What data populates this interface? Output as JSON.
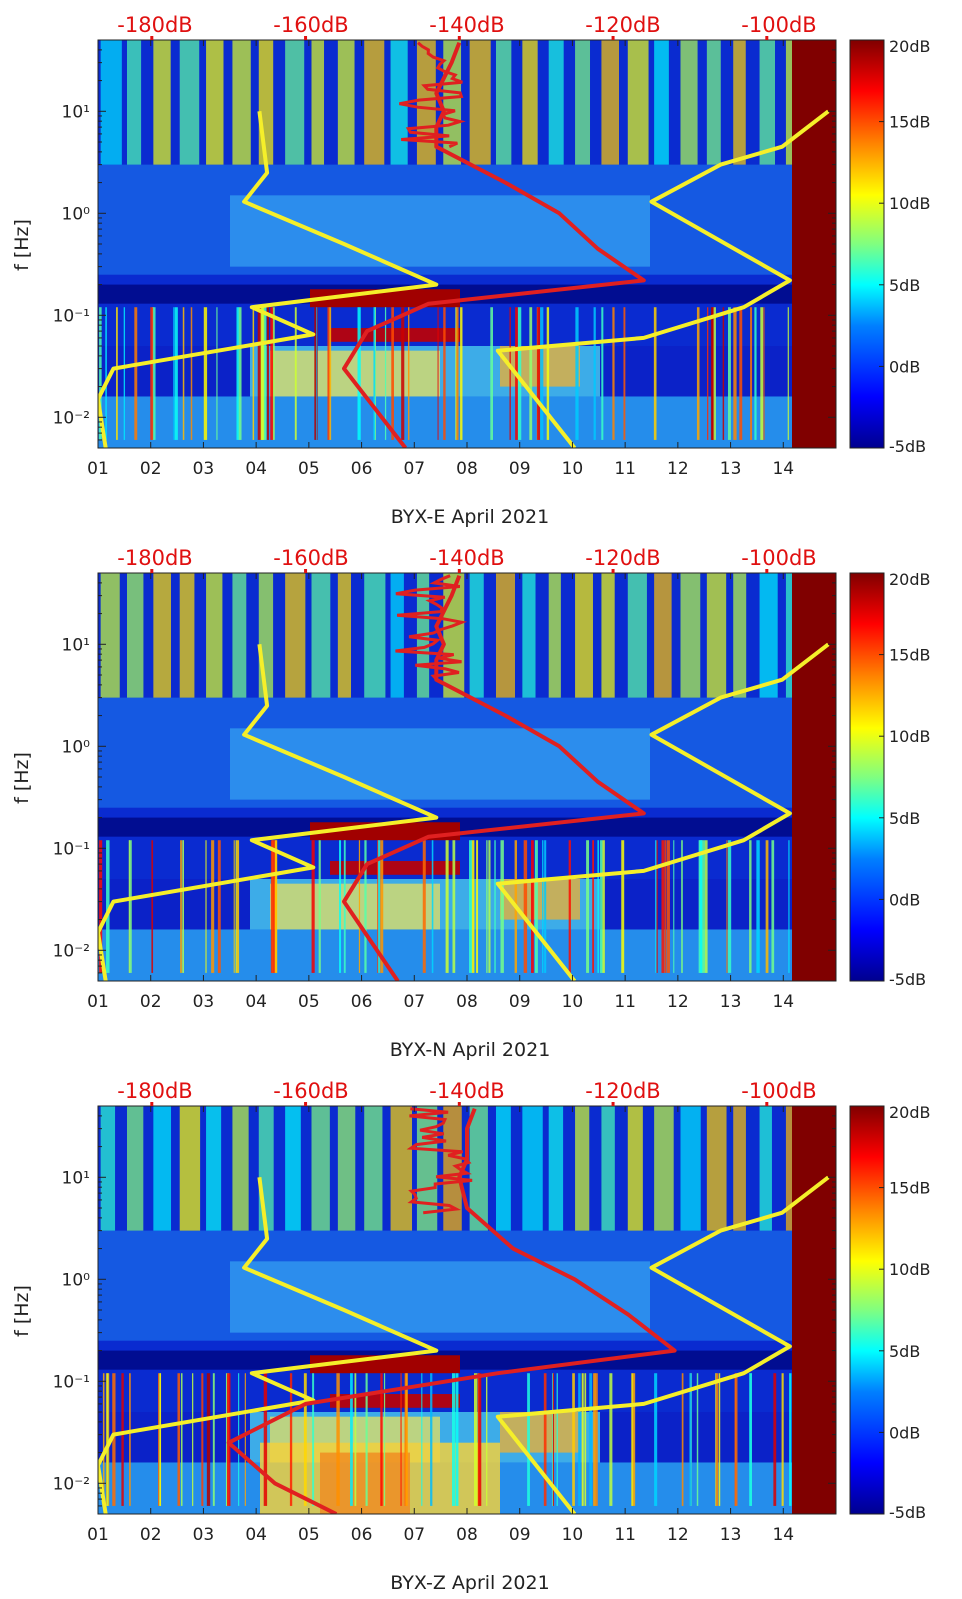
{
  "colors": {
    "yellow_curve": "#f5ef2a",
    "red_curve": "#e02020",
    "top_db_label": "#e01010",
    "colormap_stops": [
      "#00008f",
      "#0000ff",
      "#00a0ff",
      "#00ffff",
      "#80ff80",
      "#ffff00",
      "#ff8000",
      "#ff0000",
      "#800000"
    ]
  },
  "chart_data": [
    {
      "type": "heatmap",
      "name": "BYX-E",
      "xlabel": "BYX-E April 2021",
      "ylabel": "f [Hz]",
      "x_range": [
        1,
        15
      ],
      "y_range": [
        0.005,
        50
      ],
      "y_scale": "log",
      "x_ticks": [
        "01",
        "02",
        "03",
        "04",
        "05",
        "06",
        "07",
        "08",
        "09",
        "10",
        "11",
        "12",
        "13",
        "14"
      ],
      "y_ticks": [
        "10⁻²",
        "10⁻¹",
        "10⁰",
        "10¹"
      ],
      "y_tick_values": [
        0.01,
        0.1,
        1,
        10
      ],
      "top_db_ticks": [
        "-180dB",
        "-160dB",
        "-140dB",
        "-120dB",
        "-100dB"
      ],
      "top_db_values": [
        -180,
        -160,
        -140,
        -120,
        -100
      ],
      "top_db_range": [
        -187,
        -91
      ],
      "colorbar": {
        "ticks": [
          "20dB",
          "15dB",
          "10dB",
          "5dB",
          "0dB",
          "-5dB"
        ],
        "range": [
          -5,
          20
        ]
      },
      "yellow_curve": [
        [
          -166,
          10
        ],
        [
          -165,
          2.5
        ],
        [
          -168,
          1.3
        ],
        [
          -155,
          0.5
        ],
        [
          -143,
          0.2
        ],
        [
          -167,
          0.12
        ],
        [
          -159,
          0.065
        ],
        [
          -185,
          0.03
        ],
        [
          -187,
          0.015
        ],
        [
          -186,
          0.005
        ]
      ],
      "yellow_curve_upper": [
        [
          -92,
          10
        ],
        [
          -98,
          4.5
        ],
        [
          -106,
          3
        ],
        [
          -115,
          1.3
        ],
        [
          -97,
          0.22
        ],
        [
          -103,
          0.12
        ],
        [
          -116,
          0.06
        ],
        [
          -135,
          0.045
        ],
        [
          -125,
          0.005
        ]
      ],
      "red_curve": [
        [
          -140,
          47
        ],
        [
          -141,
          30
        ],
        [
          -143,
          15
        ],
        [
          -142,
          10
        ],
        [
          -143,
          7
        ],
        [
          -143,
          4.5
        ],
        [
          -134,
          2
        ],
        [
          -127,
          1
        ],
        [
          -122,
          0.45
        ],
        [
          -116,
          0.22
        ],
        [
          -144,
          0.13
        ],
        [
          -152,
          0.07
        ],
        [
          -155,
          0.03
        ],
        [
          -147,
          0.005
        ]
      ]
    },
    {
      "type": "heatmap",
      "name": "BYX-N",
      "xlabel": "BYX-N April 2021",
      "ylabel": "f [Hz]",
      "x_range": [
        1,
        15
      ],
      "y_range": [
        0.005,
        50
      ],
      "y_scale": "log",
      "x_ticks": [
        "01",
        "02",
        "03",
        "04",
        "05",
        "06",
        "07",
        "08",
        "09",
        "10",
        "11",
        "12",
        "13",
        "14"
      ],
      "y_ticks": [
        "10⁻²",
        "10⁻¹",
        "10⁰",
        "10¹"
      ],
      "y_tick_values": [
        0.01,
        0.1,
        1,
        10
      ],
      "top_db_ticks": [
        "-180dB",
        "-160dB",
        "-140dB",
        "-120dB",
        "-100dB"
      ],
      "top_db_values": [
        -180,
        -160,
        -140,
        -120,
        -100
      ],
      "top_db_range": [
        -187,
        -91
      ],
      "colorbar": {
        "ticks": [
          "20dB",
          "15dB",
          "10dB",
          "5dB",
          "0dB",
          "-5dB"
        ],
        "range": [
          -5,
          20
        ]
      },
      "yellow_curve": [
        [
          -166,
          10
        ],
        [
          -165,
          2.5
        ],
        [
          -168,
          1.3
        ],
        [
          -155,
          0.5
        ],
        [
          -143,
          0.2
        ],
        [
          -167,
          0.12
        ],
        [
          -159,
          0.065
        ],
        [
          -185,
          0.03
        ],
        [
          -187,
          0.015
        ],
        [
          -186,
          0.005
        ]
      ],
      "yellow_curve_upper": [
        [
          -92,
          10
        ],
        [
          -98,
          4.5
        ],
        [
          -106,
          3
        ],
        [
          -115,
          1.3
        ],
        [
          -97,
          0.22
        ],
        [
          -103,
          0.12
        ],
        [
          -116,
          0.06
        ],
        [
          -135,
          0.045
        ],
        [
          -125,
          0.005
        ]
      ],
      "red_curve": [
        [
          -140,
          47
        ],
        [
          -141,
          30
        ],
        [
          -143,
          15
        ],
        [
          -142,
          10
        ],
        [
          -143,
          7
        ],
        [
          -143,
          4.5
        ],
        [
          -134,
          2
        ],
        [
          -127,
          1
        ],
        [
          -122,
          0.45
        ],
        [
          -116,
          0.22
        ],
        [
          -144,
          0.13
        ],
        [
          -152,
          0.07
        ],
        [
          -155,
          0.03
        ],
        [
          -148,
          0.005
        ]
      ]
    },
    {
      "type": "heatmap",
      "name": "BYX-Z",
      "xlabel": "BYX-Z April 2021",
      "ylabel": "f [Hz]",
      "x_range": [
        1,
        15
      ],
      "y_range": [
        0.005,
        50
      ],
      "y_scale": "log",
      "x_ticks": [
        "01",
        "02",
        "03",
        "04",
        "05",
        "06",
        "07",
        "08",
        "09",
        "10",
        "11",
        "12",
        "13",
        "14"
      ],
      "y_ticks": [
        "10⁻²",
        "10⁻¹",
        "10⁰",
        "10¹"
      ],
      "y_tick_values": [
        0.01,
        0.1,
        1,
        10
      ],
      "top_db_ticks": [
        "-180dB",
        "-160dB",
        "-140dB",
        "-120dB",
        "-100dB"
      ],
      "top_db_values": [
        -180,
        -160,
        -140,
        -120,
        -100
      ],
      "top_db_range": [
        -187,
        -91
      ],
      "colorbar": {
        "ticks": [
          "20dB",
          "15dB",
          "10dB",
          "5dB",
          "0dB",
          "-5dB"
        ],
        "range": [
          -5,
          20
        ]
      },
      "yellow_curve": [
        [
          -166,
          10
        ],
        [
          -165,
          2.5
        ],
        [
          -168,
          1.3
        ],
        [
          -155,
          0.5
        ],
        [
          -143,
          0.2
        ],
        [
          -167,
          0.12
        ],
        [
          -159,
          0.065
        ],
        [
          -185,
          0.03
        ],
        [
          -187,
          0.015
        ],
        [
          -186,
          0.005
        ]
      ],
      "yellow_curve_upper": [
        [
          -92,
          10
        ],
        [
          -98,
          4.5
        ],
        [
          -106,
          3
        ],
        [
          -115,
          1.3
        ],
        [
          -97,
          0.22
        ],
        [
          -103,
          0.12
        ],
        [
          -116,
          0.06
        ],
        [
          -135,
          0.045
        ],
        [
          -125,
          0.005
        ]
      ],
      "red_curve": [
        [
          -138,
          47
        ],
        [
          -139,
          30
        ],
        [
          -139,
          15
        ],
        [
          -140,
          10
        ],
        [
          -139,
          5
        ],
        [
          -133,
          2
        ],
        [
          -125,
          1
        ],
        [
          -118,
          0.45
        ],
        [
          -112,
          0.2
        ],
        [
          -135,
          0.12
        ],
        [
          -160,
          0.06
        ],
        [
          -170,
          0.025
        ],
        [
          -164,
          0.01
        ],
        [
          -156,
          0.005
        ]
      ]
    }
  ]
}
